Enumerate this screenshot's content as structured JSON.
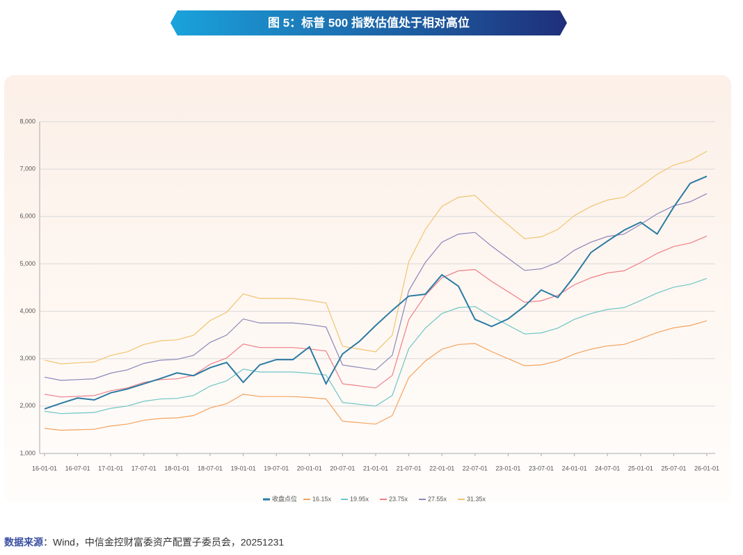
{
  "chart_data": {
    "type": "line",
    "title": "图 5：标普 500 指数估值处于相对高位",
    "source_label": "数据来源",
    "source_text": "：Wind，中信金控财富委资产配置子委员会，20251231",
    "x": [
      "16-01-01",
      "16-04-01",
      "16-07-01",
      "16-10-01",
      "17-01-01",
      "17-04-01",
      "17-07-01",
      "17-10-01",
      "18-01-01",
      "18-04-01",
      "18-07-01",
      "18-10-01",
      "19-01-01",
      "19-04-01",
      "19-07-01",
      "19-10-01",
      "20-01-01",
      "20-04-01",
      "20-07-01",
      "20-10-01",
      "21-01-01",
      "21-04-01",
      "21-07-01",
      "21-10-01",
      "22-01-01",
      "22-04-01",
      "22-07-01",
      "22-10-01",
      "23-01-01",
      "23-04-01",
      "23-07-01",
      "23-10-01",
      "24-01-01",
      "24-04-01",
      "24-07-01",
      "24-10-01",
      "25-01-01",
      "25-04-01",
      "25-07-01",
      "25-10-01",
      "26-01-01"
    ],
    "xticks": [
      "16-01-01",
      "16-07-01",
      "17-01-01",
      "17-07-01",
      "18-01-01",
      "18-07-01",
      "19-01-01",
      "19-07-01",
      "20-01-01",
      "20-07-01",
      "21-01-01",
      "21-07-01",
      "22-01-01",
      "22-07-01",
      "23-01-01",
      "23-07-01",
      "24-01-01",
      "24-07-01",
      "25-01-01",
      "25-07-01",
      "26-01-01"
    ],
    "ylim": [
      1000,
      8000
    ],
    "yticks": [
      {
        "value": 1000,
        "label": "1,000"
      },
      {
        "value": 2000,
        "label": "2,000"
      },
      {
        "value": 3000,
        "label": "3,000"
      },
      {
        "value": 4000,
        "label": "4,000"
      },
      {
        "value": 5000,
        "label": "5,000"
      },
      {
        "value": 6000,
        "label": "6,000"
      },
      {
        "value": 7000,
        "label": "7,000"
      },
      {
        "value": 8000,
        "label": "8,000"
      }
    ],
    "grid": true,
    "legend": "bottom",
    "series": [
      {
        "name": "收盘点位",
        "color": "#2b7aa3",
        "values": [
          1940,
          2060,
          2170,
          2130,
          2280,
          2360,
          2470,
          2580,
          2700,
          2640,
          2810,
          2920,
          2500,
          2870,
          2980,
          2980,
          3250,
          2470,
          3100,
          3360,
          3700,
          4020,
          4320,
          4360,
          4770,
          4530,
          3830,
          3680,
          3840,
          4110,
          4450,
          4290,
          4740,
          5240,
          5480,
          5710,
          5880,
          5630,
          6200,
          6700,
          6850
        ]
      },
      {
        "name": "16.15x",
        "color": "#f5a25d",
        "values": [
          1530,
          1490,
          1500,
          1510,
          1580,
          1620,
          1700,
          1740,
          1750,
          1800,
          1960,
          2050,
          2250,
          2200,
          2200,
          2200,
          2180,
          2150,
          1680,
          1650,
          1620,
          1800,
          2600,
          2950,
          3200,
          3300,
          3320,
          3150,
          3000,
          2850,
          2870,
          2950,
          3100,
          3200,
          3270,
          3300,
          3420,
          3550,
          3650,
          3700,
          3800
        ]
      },
      {
        "name": "19.95x",
        "color": "#6cc5c6",
        "values": [
          1890,
          1841,
          1853,
          1865,
          1952,
          2001,
          2100,
          2149,
          2162,
          2224,
          2421,
          2532,
          2779,
          2718,
          2718,
          2718,
          2693,
          2656,
          2075,
          2038,
          2001,
          2224,
          3212,
          3644,
          3953,
          4076,
          4101,
          3891,
          3706,
          3521,
          3545,
          3644,
          3829,
          3953,
          4039,
          4076,
          4225,
          4385,
          4509,
          4571,
          4694
        ]
      },
      {
        "name": "23.75x",
        "color": "#ef7d86",
        "values": [
          2250,
          2191,
          2206,
          2221,
          2324,
          2382,
          2500,
          2559,
          2574,
          2647,
          2882,
          3015,
          3309,
          3235,
          3235,
          3235,
          3206,
          3162,
          2471,
          2426,
          2382,
          2647,
          3824,
          4338,
          4706,
          4853,
          4882,
          4632,
          4412,
          4191,
          4221,
          4338,
          4559,
          4706,
          4809,
          4853,
          5029,
          5221,
          5368,
          5441,
          5588
        ]
      },
      {
        "name": "27.55x",
        "color": "#8a86b8",
        "values": [
          2610,
          2542,
          2559,
          2576,
          2695,
          2764,
          2900,
          2968,
          2985,
          3071,
          3344,
          3497,
          3838,
          3753,
          3753,
          3753,
          3719,
          3668,
          2866,
          2815,
          2764,
          3071,
          4435,
          5032,
          5459,
          5629,
          5664,
          5374,
          5118,
          4862,
          4896,
          5032,
          5288,
          5459,
          5578,
          5629,
          5834,
          6056,
          6226,
          6312,
          6482
        ]
      },
      {
        "name": "31.35x",
        "color": "#f0c46e",
        "values": [
          2970,
          2892,
          2912,
          2931,
          3067,
          3145,
          3300,
          3378,
          3397,
          3494,
          3805,
          3979,
          4368,
          4271,
          4271,
          4271,
          4232,
          4174,
          3261,
          3203,
          3145,
          3494,
          5047,
          5727,
          6212,
          6406,
          6445,
          6115,
          5824,
          5532,
          5571,
          5727,
          6018,
          6212,
          6348,
          6406,
          6639,
          6891,
          7085,
          7182,
          7376
        ]
      }
    ]
  }
}
